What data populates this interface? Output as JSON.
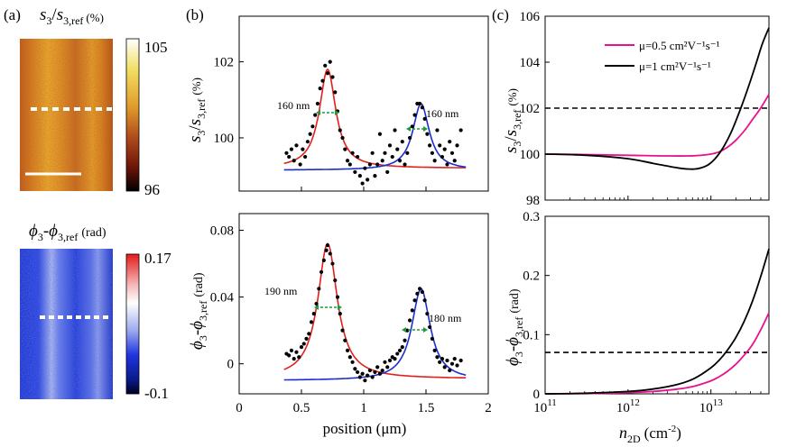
{
  "panel_labels": {
    "a": "(a)",
    "b": "(b)",
    "c": "(c)"
  },
  "map_top": {
    "title_sym": "s",
    "title_sub": "3",
    "title_slash": "/",
    "title_sym2": "s",
    "title_sub2": "3,ref",
    "title_unit": "(%)",
    "cbar_max": "105",
    "cbar_min": "96",
    "colors": [
      "#ffffff",
      "#f2df64",
      "#e09a2a",
      "#b04a1c",
      "#6a1408",
      "#000000"
    ]
  },
  "map_bottom": {
    "title_phi": "ϕ",
    "title_sub": "3",
    "title_dash": "-",
    "title_phi2": "ϕ",
    "title_sub2": "3,ref",
    "title_unit": "(rad)",
    "cbar_max": "0.17",
    "cbar_min": "-0.1",
    "colors": [
      "#e51a1a",
      "#f4b8b8",
      "#ffffff",
      "#9aa8ee",
      "#2035e0",
      "#0a1a8a",
      "#000020"
    ]
  },
  "chart_data": [
    {
      "id": "b-top",
      "type": "scatter",
      "xlim": [
        0,
        2
      ],
      "ylim": [
        98.6,
        103.2
      ],
      "yticks": [
        "100",
        "102"
      ],
      "ytick_values": [
        100,
        102
      ],
      "ylabel": {
        "sym": "s",
        "sub": "3",
        "slash": "/",
        "sym2": "s",
        "sub2": "3,ref",
        "unit": "(%)"
      },
      "annotations": [
        "160 nm",
        "160 nm"
      ],
      "fits": [
        {
          "name": "red-fit",
          "color": "#e0201c",
          "center": 0.71,
          "amp": 2.6,
          "width": 0.08,
          "offset": 99.2
        },
        {
          "name": "blue-fit",
          "color": "#1c2ed0",
          "center": 1.46,
          "amp": 1.75,
          "width": 0.08,
          "offset": 99.15
        }
      ],
      "points": [
        [
          0.38,
          99.6
        ],
        [
          0.4,
          99.5
        ],
        [
          0.42,
          99.7
        ],
        [
          0.44,
          99.4
        ],
        [
          0.46,
          99.8
        ],
        [
          0.49,
          99.3
        ],
        [
          0.51,
          99.7
        ],
        [
          0.53,
          99.5
        ],
        [
          0.55,
          99.9
        ],
        [
          0.57,
          100.1
        ],
        [
          0.59,
          100.3
        ],
        [
          0.61,
          100.6
        ],
        [
          0.63,
          100.9
        ],
        [
          0.65,
          101.3
        ],
        [
          0.67,
          101.5
        ],
        [
          0.69,
          101.9
        ],
        [
          0.71,
          101.7
        ],
        [
          0.73,
          102.0
        ],
        [
          0.75,
          101.6
        ],
        [
          0.77,
          101.2
        ],
        [
          0.79,
          100.7
        ],
        [
          0.81,
          100.2
        ],
        [
          0.83,
          100.0
        ],
        [
          0.85,
          99.7
        ],
        [
          0.87,
          99.4
        ],
        [
          0.89,
          99.3
        ],
        [
          0.91,
          99.6
        ],
        [
          0.93,
          99.1
        ],
        [
          0.95,
          99.5
        ],
        [
          0.97,
          99.0
        ],
        [
          0.99,
          98.8
        ],
        [
          1.01,
          99.2
        ],
        [
          1.03,
          98.9
        ],
        [
          1.05,
          99.3
        ],
        [
          1.07,
          99.6
        ],
        [
          1.09,
          99.0
        ],
        [
          1.11,
          99.3
        ],
        [
          1.13,
          100.1
        ],
        [
          1.15,
          99.4
        ],
        [
          1.17,
          99.6
        ],
        [
          1.19,
          99.1
        ],
        [
          1.21,
          99.8
        ],
        [
          1.23,
          99.5
        ],
        [
          1.25,
          100.2
        ],
        [
          1.27,
          99.7
        ],
        [
          1.29,
          99.4
        ],
        [
          1.31,
          99.9
        ],
        [
          1.33,
          99.3
        ],
        [
          1.35,
          99.6
        ],
        [
          1.37,
          100.0
        ],
        [
          1.39,
          100.3
        ],
        [
          1.41,
          100.6
        ],
        [
          1.43,
          100.9
        ],
        [
          1.45,
          100.9
        ],
        [
          1.47,
          100.8
        ],
        [
          1.49,
          100.5
        ],
        [
          1.51,
          100.1
        ],
        [
          1.53,
          99.8
        ],
        [
          1.55,
          99.6
        ],
        [
          1.57,
          99.4
        ],
        [
          1.59,
          100.2
        ],
        [
          1.61,
          99.8
        ],
        [
          1.63,
          99.5
        ],
        [
          1.65,
          99.7
        ],
        [
          1.67,
          99.3
        ],
        [
          1.69,
          99.9
        ],
        [
          1.71,
          99.6
        ],
        [
          1.73,
          99.4
        ],
        [
          1.75,
          99.8
        ],
        [
          1.78,
          100.2
        ]
      ]
    },
    {
      "id": "b-bottom",
      "type": "scatter",
      "xlim": [
        0,
        2
      ],
      "ylim": [
        -0.018,
        0.09
      ],
      "xticks": [
        "0",
        "0.5",
        "1",
        "1.5",
        "2"
      ],
      "xtick_values": [
        0,
        0.5,
        1,
        1.5,
        2
      ],
      "yticks": [
        "0",
        "0.04",
        "0.08"
      ],
      "ytick_values": [
        0,
        0.04,
        0.08
      ],
      "xlabel": "position (μm)",
      "ylabel": {
        "sym": "ϕ",
        "sub": "3",
        "dash": "-",
        "sym2": "ϕ",
        "sub2": "3,ref",
        "unit": "(rad)"
      },
      "annotations": [
        "190 nm",
        "180 nm"
      ],
      "fits": [
        {
          "name": "red-fit",
          "color": "#e0201c",
          "center": 0.71,
          "amp": 0.081,
          "width": 0.095,
          "offset": -0.009
        },
        {
          "name": "blue-fit",
          "color": "#1c2ed0",
          "center": 1.46,
          "amp": 0.055,
          "width": 0.09,
          "offset": -0.01
        }
      ],
      "points": [
        [
          0.38,
          0.006
        ],
        [
          0.4,
          0.005
        ],
        [
          0.42,
          0.008
        ],
        [
          0.44,
          0.003
        ],
        [
          0.46,
          0.007
        ],
        [
          0.48,
          0.004
        ],
        [
          0.5,
          0.01
        ],
        [
          0.52,
          0.012
        ],
        [
          0.54,
          0.015
        ],
        [
          0.56,
          0.018
        ],
        [
          0.58,
          0.025
        ],
        [
          0.6,
          0.03
        ],
        [
          0.62,
          0.036
        ],
        [
          0.64,
          0.045
        ],
        [
          0.66,
          0.055
        ],
        [
          0.68,
          0.062
        ],
        [
          0.7,
          0.068
        ],
        [
          0.71,
          0.071
        ],
        [
          0.73,
          0.066
        ],
        [
          0.75,
          0.06
        ],
        [
          0.77,
          0.05
        ],
        [
          0.79,
          0.04
        ],
        [
          0.81,
          0.03
        ],
        [
          0.83,
          0.02
        ],
        [
          0.85,
          0.014
        ],
        [
          0.87,
          0.008
        ],
        [
          0.89,
          0.004
        ],
        [
          0.91,
          0.001
        ],
        [
          0.93,
          -0.003
        ],
        [
          0.95,
          -0.005
        ],
        [
          0.97,
          -0.008
        ],
        [
          0.99,
          -0.006
        ],
        [
          1.01,
          -0.01
        ],
        [
          1.03,
          -0.007
        ],
        [
          1.05,
          -0.004
        ],
        [
          1.07,
          -0.008
        ],
        [
          1.09,
          -0.005
        ],
        [
          1.11,
          -0.002
        ],
        [
          1.13,
          -0.006
        ],
        [
          1.15,
          -0.004
        ],
        [
          1.17,
          0.001
        ],
        [
          1.19,
          -0.002
        ],
        [
          1.21,
          0.002
        ],
        [
          1.23,
          0.004
        ],
        [
          1.25,
          0.003
        ],
        [
          1.27,
          0.006
        ],
        [
          1.29,
          0.008
        ],
        [
          1.31,
          0.01
        ],
        [
          1.33,
          0.014
        ],
        [
          1.35,
          0.02
        ],
        [
          1.37,
          0.026
        ],
        [
          1.39,
          0.032
        ],
        [
          1.41,
          0.038
        ],
        [
          1.43,
          0.042
        ],
        [
          1.45,
          0.045
        ],
        [
          1.47,
          0.043
        ],
        [
          1.49,
          0.038
        ],
        [
          1.51,
          0.03
        ],
        [
          1.53,
          0.022
        ],
        [
          1.55,
          0.015
        ],
        [
          1.57,
          0.008
        ],
        [
          1.59,
          0.004
        ],
        [
          1.61,
          0.001
        ],
        [
          1.63,
          0.003
        ],
        [
          1.65,
          -0.002
        ],
        [
          1.67,
          0.002
        ],
        [
          1.69,
          -0.004
        ],
        [
          1.71,
          0.0
        ],
        [
          1.73,
          0.003
        ],
        [
          1.75,
          -0.001
        ],
        [
          1.78,
          0.002
        ]
      ]
    },
    {
      "id": "c-top",
      "type": "line",
      "xscale": "log",
      "xlim": [
        11,
        13.7
      ],
      "ylim": [
        98,
        106
      ],
      "yticks": [
        "98",
        "100",
        "102",
        "104",
        "106"
      ],
      "ytick_values": [
        98,
        100,
        102,
        104,
        106
      ],
      "ylabel": {
        "sym": "s",
        "sub": "3",
        "slash": "/",
        "sym2": "s",
        "sub2": "3,ref",
        "unit": "(%)"
      },
      "hline": 102,
      "legend": [
        {
          "label": "μ=0.5 cm²V⁻¹s⁻¹",
          "color": "#e8118e"
        },
        {
          "label": "μ=1 cm²V⁻¹s⁻¹",
          "color": "#000000"
        }
      ],
      "series": [
        {
          "name": "mu-0.5",
          "color": "#e8118e",
          "x": [
            11,
            11.5,
            12,
            12.5,
            12.8,
            13.0,
            13.1,
            13.2,
            13.3,
            13.4,
            13.5,
            13.6,
            13.7
          ],
          "y": [
            100,
            99.98,
            99.95,
            99.92,
            99.93,
            100.0,
            100.1,
            100.3,
            100.6,
            101.0,
            101.5,
            102.0,
            102.6
          ]
        },
        {
          "name": "mu-1",
          "color": "#000000",
          "x": [
            11,
            11.5,
            12,
            12.3,
            12.6,
            12.8,
            12.95,
            13.05,
            13.15,
            13.25,
            13.35,
            13.45,
            13.55,
            13.62,
            13.7
          ],
          "y": [
            100,
            99.95,
            99.8,
            99.6,
            99.4,
            99.35,
            99.5,
            99.8,
            100.3,
            101.0,
            101.9,
            102.9,
            104.0,
            104.8,
            105.5
          ]
        }
      ]
    },
    {
      "id": "c-bottom",
      "type": "line",
      "xscale": "log",
      "xlim": [
        11,
        13.7
      ],
      "ylim": [
        0,
        0.3
      ],
      "xticks": [
        "10",
        "10",
        "10"
      ],
      "xtick_exp": [
        "11",
        "12",
        "13"
      ],
      "xtick_values": [
        11,
        12,
        13
      ],
      "yticks": [
        "0",
        "0.1",
        "0.2",
        "0.3"
      ],
      "ytick_values": [
        0,
        0.1,
        0.2,
        0.3
      ],
      "xlabel": {
        "sym": "n",
        "sub": "2D",
        "unit": "(cm",
        "exp": "-2",
        "close": ")"
      },
      "ylabel": {
        "sym": "ϕ",
        "sub": "3",
        "dash": "-",
        "sym2": "ϕ",
        "sub2": "3,ref",
        "unit": "(rad)"
      },
      "hline": 0.07,
      "series": [
        {
          "name": "mu-0.5",
          "color": "#e8118e",
          "x": [
            11,
            11.5,
            12,
            12.3,
            12.6,
            12.8,
            13.0,
            13.1,
            13.2,
            13.3,
            13.4,
            13.5,
            13.6,
            13.7
          ],
          "y": [
            0,
            0.0005,
            0.002,
            0.004,
            0.008,
            0.013,
            0.022,
            0.029,
            0.038,
            0.05,
            0.065,
            0.083,
            0.108,
            0.137
          ]
        },
        {
          "name": "mu-1",
          "color": "#000000",
          "x": [
            11,
            11.5,
            12,
            12.3,
            12.6,
            12.8,
            13.0,
            13.1,
            13.2,
            13.3,
            13.4,
            13.5,
            13.6,
            13.7
          ],
          "y": [
            0,
            0.001,
            0.004,
            0.008,
            0.016,
            0.026,
            0.044,
            0.057,
            0.074,
            0.095,
            0.122,
            0.156,
            0.198,
            0.245
          ]
        }
      ]
    }
  ]
}
